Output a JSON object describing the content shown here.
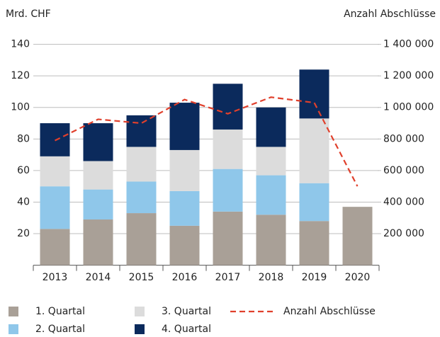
{
  "chart_data": {
    "type": "bar",
    "stacked": true,
    "y_label": "Mrd. CHF",
    "y2_label": "Anzahl Abschlüsse",
    "categories": [
      "2013",
      "2014",
      "2015",
      "2016",
      "2017",
      "2018",
      "2019",
      "2020"
    ],
    "series": [
      {
        "name": "1. Quartal",
        "color": "#a9a097",
        "values": [
          23,
          29,
          33,
          25,
          34,
          32,
          28,
          37
        ]
      },
      {
        "name": "2. Quartal",
        "color": "#8fc7ea",
        "values": [
          27,
          19,
          20,
          22,
          27,
          25,
          24,
          null
        ]
      },
      {
        "name": "3. Quartal",
        "color": "#dcdcdc",
        "values": [
          19,
          18,
          22,
          26,
          25,
          18,
          41,
          null
        ]
      },
      {
        "name": "4. Quartal",
        "color": "#0b2a5c",
        "values": [
          21,
          24,
          20,
          30,
          29,
          25,
          31,
          null
        ]
      },
      {
        "name": "Anzahl Abschlüsse",
        "color": "#e0402c",
        "type": "line",
        "axis": "y2",
        "values": [
          790000,
          925000,
          900000,
          1050000,
          960000,
          1065000,
          1030000,
          500000
        ]
      }
    ],
    "ylim": [
      0,
      140
    ],
    "yticks": [
      20,
      40,
      60,
      80,
      100,
      120,
      140
    ],
    "y2lim": [
      0,
      1400000
    ],
    "y2ticks": [
      {
        "value": 200000,
        "label": "200 000"
      },
      {
        "value": 400000,
        "label": "400 000"
      },
      {
        "value": 600000,
        "label": "600 000"
      },
      {
        "value": 800000,
        "label": "800 000"
      },
      {
        "value": 1000000,
        "label": "1 000 000"
      },
      {
        "value": 1200000,
        "label": "1 200 000"
      },
      {
        "value": 1400000,
        "label": "1 400 000"
      }
    ],
    "grid": true
  }
}
